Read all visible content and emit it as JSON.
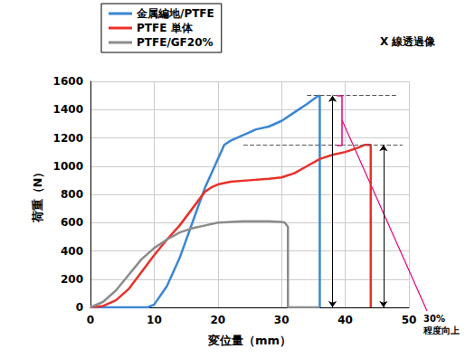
{
  "chart_data": {
    "type": "line",
    "x_label": "変位量（mm）",
    "y_label": "荷重（N）",
    "xlim": [
      0,
      50
    ],
    "xticks": [
      0,
      10,
      20,
      30,
      40,
      50
    ],
    "ylim": [
      0,
      1600
    ],
    "yticks": [
      0,
      200,
      400,
      600,
      800,
      1000,
      1200,
      1400,
      1600
    ],
    "grid": true,
    "legend": "upper left",
    "series": [
      {
        "name": "金属編地/PTFE",
        "color": "#3a86d4",
        "x": [
          0,
          9,
          10,
          12,
          14,
          16,
          18,
          20,
          21,
          22,
          24,
          26,
          28,
          30,
          32,
          34,
          35.5,
          36,
          36
        ],
        "values": [
          0,
          0,
          20,
          150,
          350,
          600,
          850,
          1050,
          1150,
          1180,
          1220,
          1260,
          1280,
          1320,
          1380,
          1440,
          1490,
          1500,
          0
        ]
      },
      {
        "name": "PTFE 単体",
        "color": "#e8312a",
        "x": [
          0,
          2,
          4,
          6,
          8,
          10,
          12,
          14,
          16,
          18,
          19,
          20,
          22,
          25,
          28,
          30,
          32,
          34,
          36,
          38,
          40,
          42,
          43,
          44,
          44
        ],
        "values": [
          0,
          10,
          50,
          130,
          250,
          370,
          480,
          580,
          700,
          820,
          850,
          870,
          890,
          900,
          910,
          920,
          950,
          1000,
          1050,
          1080,
          1100,
          1130,
          1150,
          1150,
          0
        ]
      },
      {
        "name": "PTFE/GF20%",
        "color": "#8c8c8c",
        "x": [
          0,
          2,
          4,
          6,
          8,
          10,
          12,
          14,
          16,
          18,
          20,
          24,
          28,
          30,
          30.5,
          31,
          31,
          36
        ],
        "values": [
          0,
          40,
          120,
          230,
          340,
          420,
          480,
          530,
          560,
          580,
          600,
          610,
          610,
          605,
          600,
          570,
          0,
          0
        ]
      }
    ],
    "reference_lines": [
      {
        "y": 1500,
        "x": [
          34,
          48
        ]
      },
      {
        "y": 1150,
        "x": [
          24,
          49
        ]
      }
    ],
    "arrows": [
      {
        "x": 38,
        "y": [
          0,
          1500
        ]
      },
      {
        "x": 46,
        "y": [
          0,
          1150
        ]
      }
    ],
    "bracket": {
      "x": 39.5,
      "y": [
        1150,
        1500
      ],
      "color": "#e6007e",
      "text": [
        "30%",
        "程度向上"
      ]
    },
    "image_label": "X 線透過像"
  }
}
